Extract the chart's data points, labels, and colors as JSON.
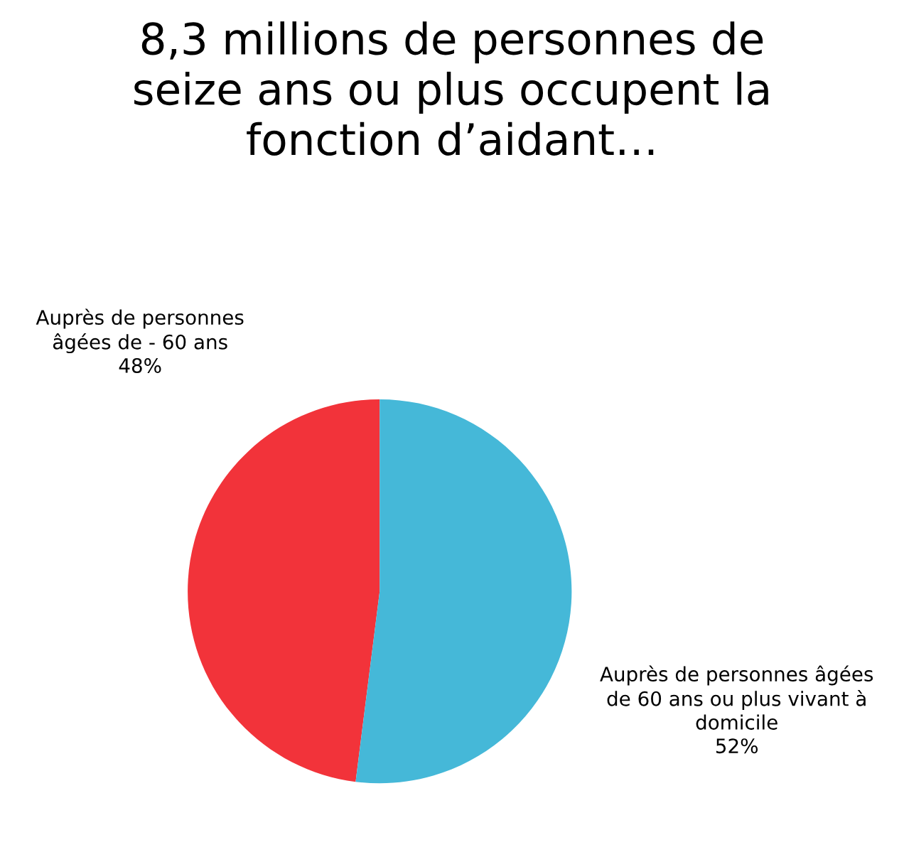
{
  "chart_data": {
    "type": "pie",
    "title": "8,3 millions de personnes de\nseize ans ou plus occupent la\nfonction d’aidant…",
    "categories": [
      "Auprès de personnes\nâgées de - 60 ans",
      "Auprès de personnes âgées\nde 60 ans ou plus vivant à\ndomicile"
    ],
    "values": [
      48,
      52
    ],
    "value_labels": [
      "48%",
      "52%"
    ],
    "colors": [
      "#f2333a",
      "#45b8d8"
    ],
    "legend": false
  }
}
